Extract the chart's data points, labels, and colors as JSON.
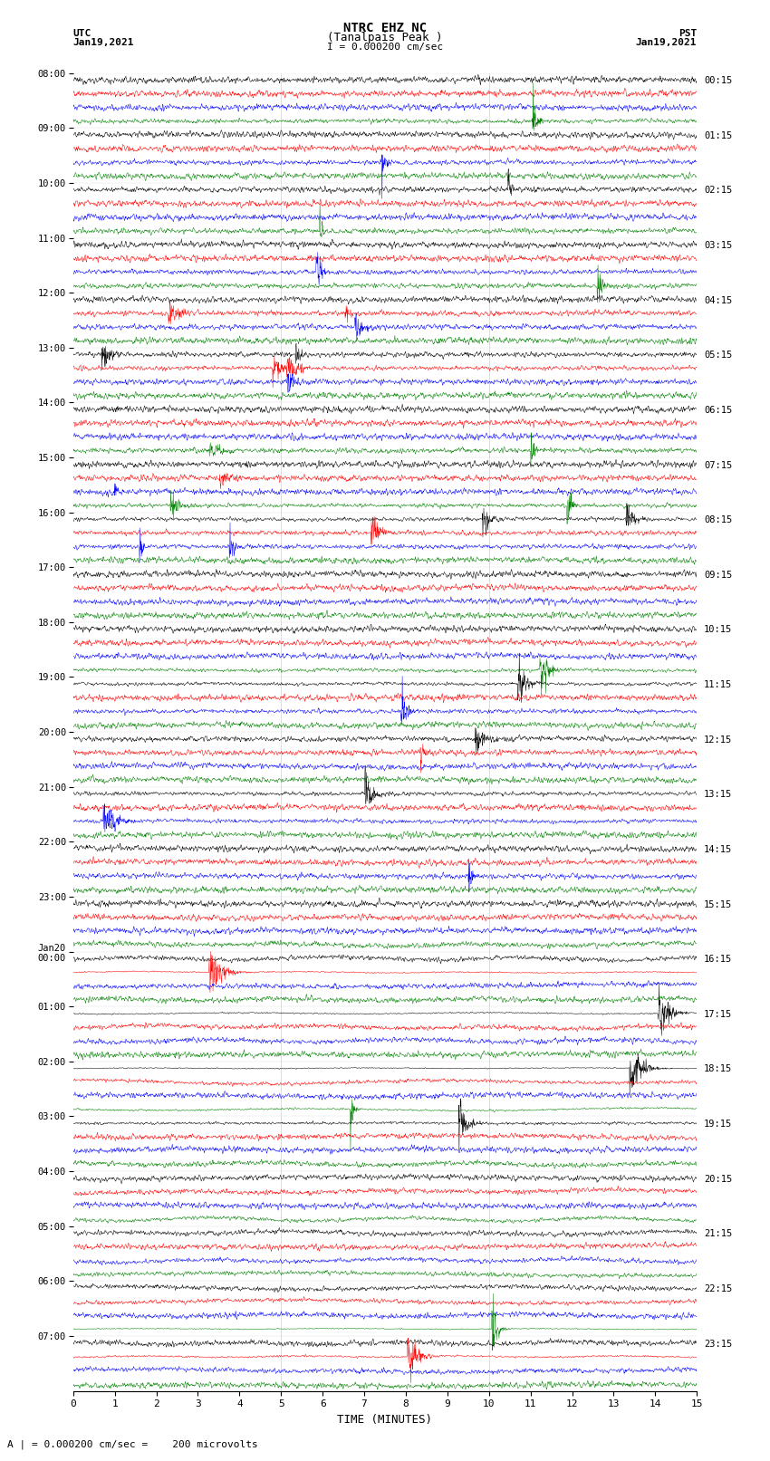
{
  "title_line1": "NTRC EHZ NC",
  "title_line2": "(Tanalpais Peak )",
  "scale_label": "I = 0.000200 cm/sec",
  "bottom_label": "A | = 0.000200 cm/sec =    200 microvolts",
  "xlabel": "TIME (MINUTES)",
  "left_header_line1": "UTC",
  "left_header_line2": "Jan19,2021",
  "right_header_line1": "PST",
  "right_header_line2": "Jan19,2021",
  "left_times": [
    "08:00",
    "09:00",
    "10:00",
    "11:00",
    "12:00",
    "13:00",
    "14:00",
    "15:00",
    "16:00",
    "17:00",
    "18:00",
    "19:00",
    "20:00",
    "21:00",
    "22:00",
    "23:00",
    "Jan20\n00:00",
    "01:00",
    "02:00",
    "03:00",
    "04:00",
    "05:00",
    "06:00",
    "07:00"
  ],
  "right_times": [
    "00:15",
    "01:15",
    "02:15",
    "03:15",
    "04:15",
    "05:15",
    "06:15",
    "07:15",
    "08:15",
    "09:15",
    "10:15",
    "11:15",
    "12:15",
    "13:15",
    "14:15",
    "15:15",
    "16:15",
    "17:15",
    "18:15",
    "19:15",
    "20:15",
    "21:15",
    "22:15",
    "23:15"
  ],
  "colors": [
    "black",
    "red",
    "blue",
    "green"
  ],
  "n_rows": 24,
  "traces_per_row": 4,
  "minutes": 15,
  "fig_width": 8.5,
  "fig_height": 16.13,
  "bg_color": "white",
  "noise_scales": [
    0.7,
    0.5,
    0.8,
    0.9,
    0.7,
    0.8,
    0.9,
    0.85,
    0.7,
    0.5,
    0.4,
    0.5,
    0.5,
    0.6,
    0.5,
    0.3,
    0.15,
    0.12,
    0.12,
    0.2,
    0.12,
    0.1,
    0.12,
    0.15
  ],
  "event_probs": [
    0.3,
    0.2,
    0.4,
    0.5,
    0.35,
    0.4,
    0.45,
    0.4,
    0.3,
    0.25,
    0.2,
    0.25,
    0.25,
    0.3,
    0.2,
    0.1,
    0.05,
    0.05,
    0.05,
    0.1,
    0.05,
    0.05,
    0.05,
    0.05
  ]
}
